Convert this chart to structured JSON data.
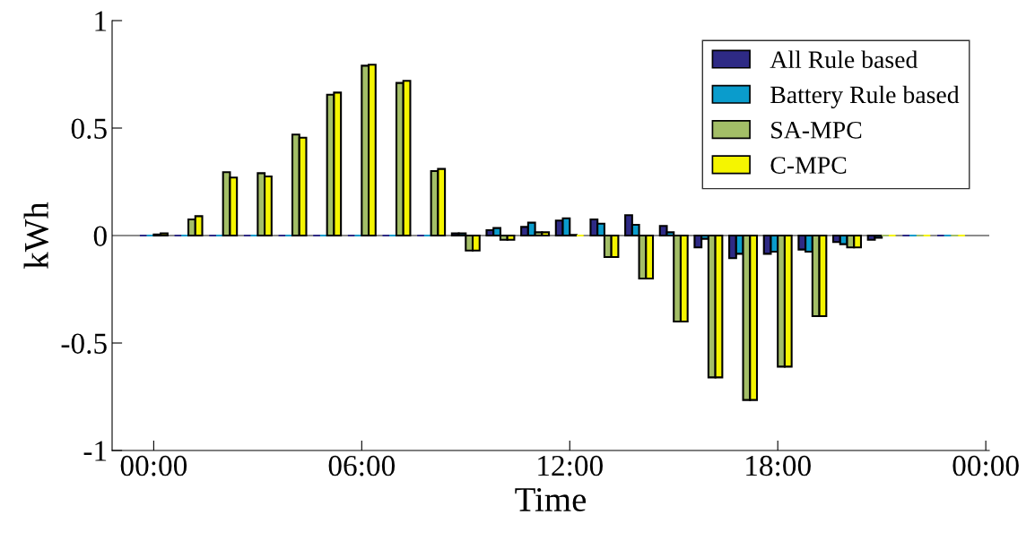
{
  "chart_data": {
    "type": "bar",
    "xlabel": "Time",
    "ylabel": "kWh",
    "x": [
      0,
      1,
      2,
      3,
      4,
      5,
      6,
      7,
      8,
      9,
      10,
      11,
      12,
      13,
      14,
      15,
      16,
      17,
      18,
      19,
      20,
      21,
      22,
      23
    ],
    "series": [
      {
        "name": "All Rule based",
        "color": "#2e2a85",
        "values": [
          0,
          0,
          0,
          0,
          0,
          0,
          0,
          0,
          0,
          0.01,
          0.025,
          0.04,
          0.07,
          0.075,
          0.095,
          0.045,
          -0.055,
          -0.105,
          -0.085,
          -0.065,
          -0.03,
          -0.02,
          0,
          0
        ]
      },
      {
        "name": "Battery Rule based",
        "color": "#0a9ccc",
        "values": [
          0,
          0,
          0,
          0,
          0,
          0,
          0,
          0,
          0,
          0.01,
          0.035,
          0.06,
          0.08,
          0.055,
          0.05,
          0.015,
          -0.015,
          -0.085,
          -0.075,
          -0.075,
          -0.04,
          -0.01,
          0,
          0
        ]
      },
      {
        "name": "SA-MPC",
        "color": "#a3be67",
        "values": [
          0.005,
          0.075,
          0.295,
          0.29,
          0.47,
          0.655,
          0.79,
          0.71,
          0.3,
          -0.07,
          -0.02,
          0.015,
          0.003,
          -0.1,
          -0.2,
          -0.4,
          -0.66,
          -0.765,
          -0.61,
          -0.375,
          -0.055,
          0,
          0,
          0
        ]
      },
      {
        "name": "C-MPC",
        "color": "#f5f500",
        "values": [
          0.01,
          0.09,
          0.27,
          0.275,
          0.455,
          0.665,
          0.795,
          0.72,
          0.31,
          -0.07,
          -0.02,
          0.015,
          0,
          -0.1,
          -0.2,
          -0.4,
          -0.66,
          -0.765,
          -0.61,
          -0.375,
          -0.055,
          0,
          0,
          0
        ]
      }
    ],
    "xlim": [
      -1.2,
      24.1
    ],
    "xticks": [
      {
        "value": 0,
        "label": "00:00"
      },
      {
        "value": 6,
        "label": "06:00"
      },
      {
        "value": 12,
        "label": "12:00"
      },
      {
        "value": 18,
        "label": "18:00"
      },
      {
        "value": 24,
        "label": "00:00"
      }
    ],
    "ylim": [
      -1,
      1
    ],
    "yticks": [
      -1,
      -0.5,
      0,
      0.5,
      1
    ],
    "ref_lines": [
      {
        "axis": "y",
        "value": 0,
        "color": "#8c8c8c"
      }
    ],
    "grid": false,
    "legend": "top right"
  }
}
